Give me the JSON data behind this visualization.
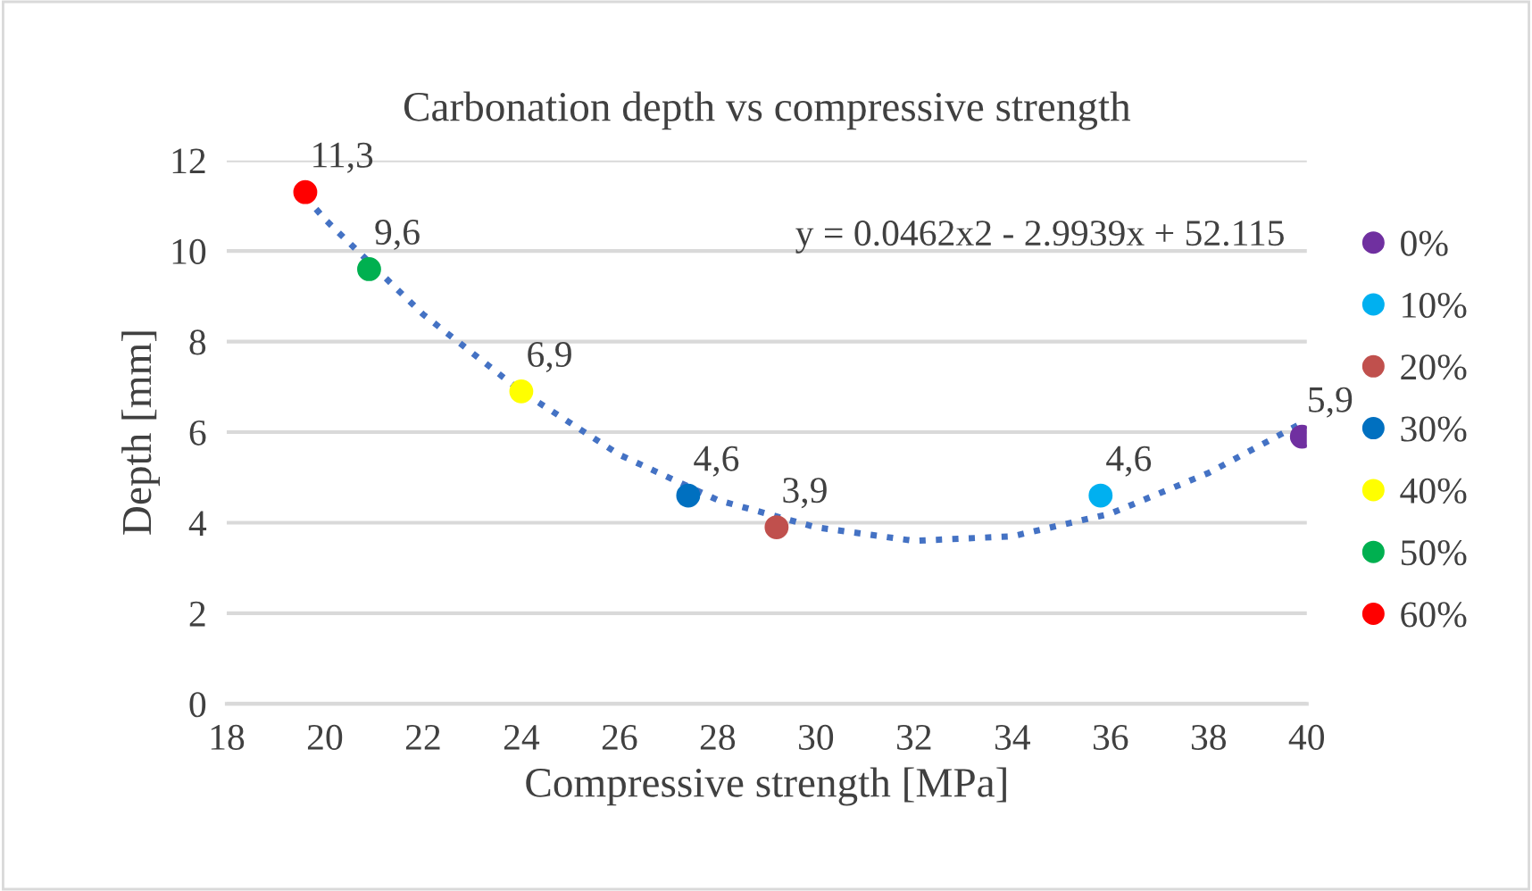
{
  "chart_data": {
    "type": "scatter",
    "title": "Carbonation depth vs compressive strength",
    "xlabel": "Compressive strength [MPa]",
    "ylabel": "Depth [mm]",
    "series": [
      {
        "name": "0%",
        "color": "#7030a0",
        "x": [
          39.9
        ],
        "values": [
          5.9
        ],
        "value_labels": [
          "5,9"
        ]
      },
      {
        "name": "10%",
        "color": "#00b0f0",
        "x": [
          35.8
        ],
        "values": [
          4.6
        ],
        "value_labels": [
          "4,6"
        ]
      },
      {
        "name": "20%",
        "color": "#c0504d",
        "x": [
          29.2
        ],
        "values": [
          3.9
        ],
        "value_labels": [
          "3,9"
        ]
      },
      {
        "name": "30%",
        "color": "#0070c0",
        "x": [
          27.4
        ],
        "values": [
          4.6
        ],
        "value_labels": [
          "4,6"
        ]
      },
      {
        "name": "40%",
        "color": "#ffff00",
        "x": [
          24.0
        ],
        "values": [
          6.9
        ],
        "value_labels": [
          "6,9"
        ]
      },
      {
        "name": "50%",
        "color": "#00b050",
        "x": [
          20.9
        ],
        "values": [
          9.6
        ],
        "value_labels": [
          "9,6"
        ]
      },
      {
        "name": "60%",
        "color": "#ff0000",
        "x": [
          19.6
        ],
        "values": [
          11.3
        ],
        "value_labels": [
          "11,3"
        ]
      },
      {
        "type": "line",
        "color": "#4472c4",
        "line_style": "dotted",
        "marker": "none",
        "x": [
          19.6,
          20,
          22,
          24,
          26,
          28,
          30,
          32,
          34,
          36,
          38,
          39.9
        ],
        "values": [
          11.2,
          10.7,
          8.6,
          6.9,
          5.5,
          4.5,
          3.9,
          3.6,
          3.7,
          4.2,
          5.1,
          6.2
        ]
      }
    ],
    "annotations": [
      "y = 0.0462x2 - 2.9939x + 52.115"
    ],
    "xlim": [
      18,
      40
    ],
    "xticks": [
      18,
      20,
      22,
      24,
      26,
      28,
      30,
      32,
      34,
      36,
      38,
      40
    ],
    "ylim": [
      0,
      12
    ],
    "yticks": [
      0,
      2,
      4,
      6,
      8,
      10,
      12
    ],
    "grid": "y",
    "legend": "right",
    "marker": "circle"
  }
}
